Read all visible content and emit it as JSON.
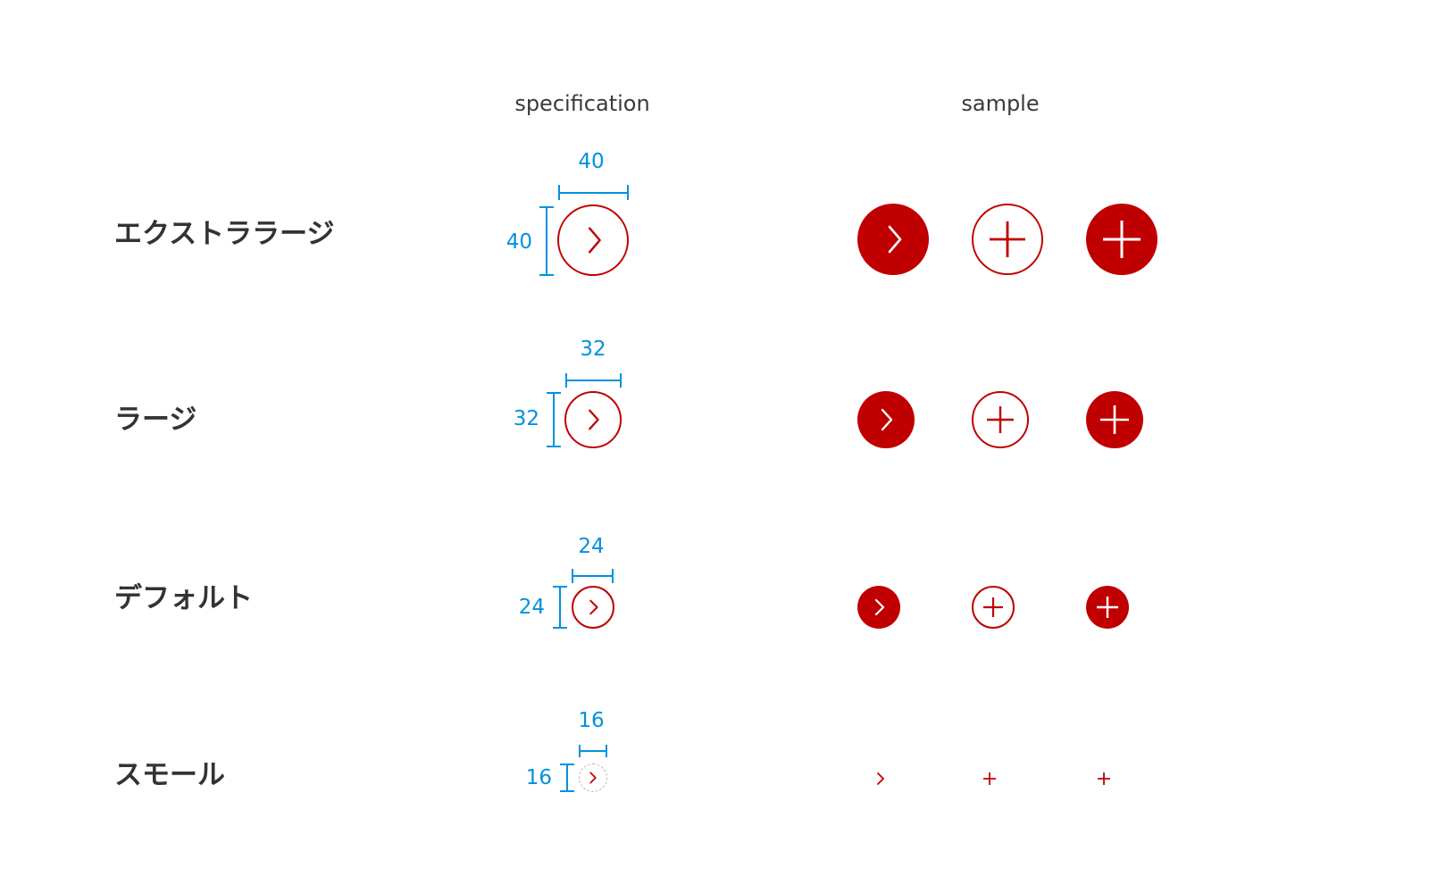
{
  "headers": {
    "specification": "specification",
    "sample": "sample"
  },
  "colors": {
    "accent": "#c00000",
    "dimension": "#0091e0",
    "label": "#333333",
    "small_outline": "#b8b8b8"
  },
  "rows": [
    {
      "key": "xlarge",
      "label": "エクストララージ",
      "width_label": "40",
      "height_label": "40",
      "samples": [
        {
          "variant": "filled",
          "icon": "chevron-right-icon"
        },
        {
          "variant": "outlined",
          "icon": "plus-icon"
        },
        {
          "variant": "filled",
          "icon": "plus-icon"
        }
      ]
    },
    {
      "key": "large",
      "label": "ラージ",
      "width_label": "32",
      "height_label": "32",
      "samples": [
        {
          "variant": "filled",
          "icon": "chevron-right-icon"
        },
        {
          "variant": "outlined",
          "icon": "plus-icon"
        },
        {
          "variant": "filled",
          "icon": "plus-icon"
        }
      ]
    },
    {
      "key": "default",
      "label": "デフォルト",
      "width_label": "24",
      "height_label": "24",
      "samples": [
        {
          "variant": "filled",
          "icon": "chevron-right-icon"
        },
        {
          "variant": "outlined",
          "icon": "plus-icon"
        },
        {
          "variant": "filled",
          "icon": "plus-icon"
        }
      ]
    },
    {
      "key": "small",
      "label": "スモール",
      "width_label": "16",
      "height_label": "16",
      "samples": [
        {
          "variant": "bare",
          "icon": "chevron-right-icon"
        },
        {
          "variant": "bare",
          "icon": "plus-icon"
        },
        {
          "variant": "bare",
          "icon": "plus-icon"
        }
      ]
    }
  ]
}
